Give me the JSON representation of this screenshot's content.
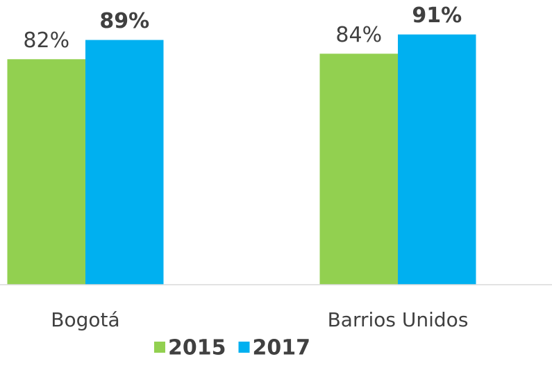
{
  "chart_data": {
    "type": "bar",
    "categories": [
      "Bogotá",
      "Barrios Unidos"
    ],
    "series": [
      {
        "name": "2015",
        "color": "#92d050",
        "values": [
          82,
          84
        ],
        "value_labels": [
          "82%",
          "84%"
        ]
      },
      {
        "name": "2017",
        "color": "#00b0f0",
        "values": [
          89,
          91
        ],
        "value_labels": [
          "89%",
          "91%"
        ]
      }
    ],
    "ylim": [
      0,
      100
    ]
  }
}
